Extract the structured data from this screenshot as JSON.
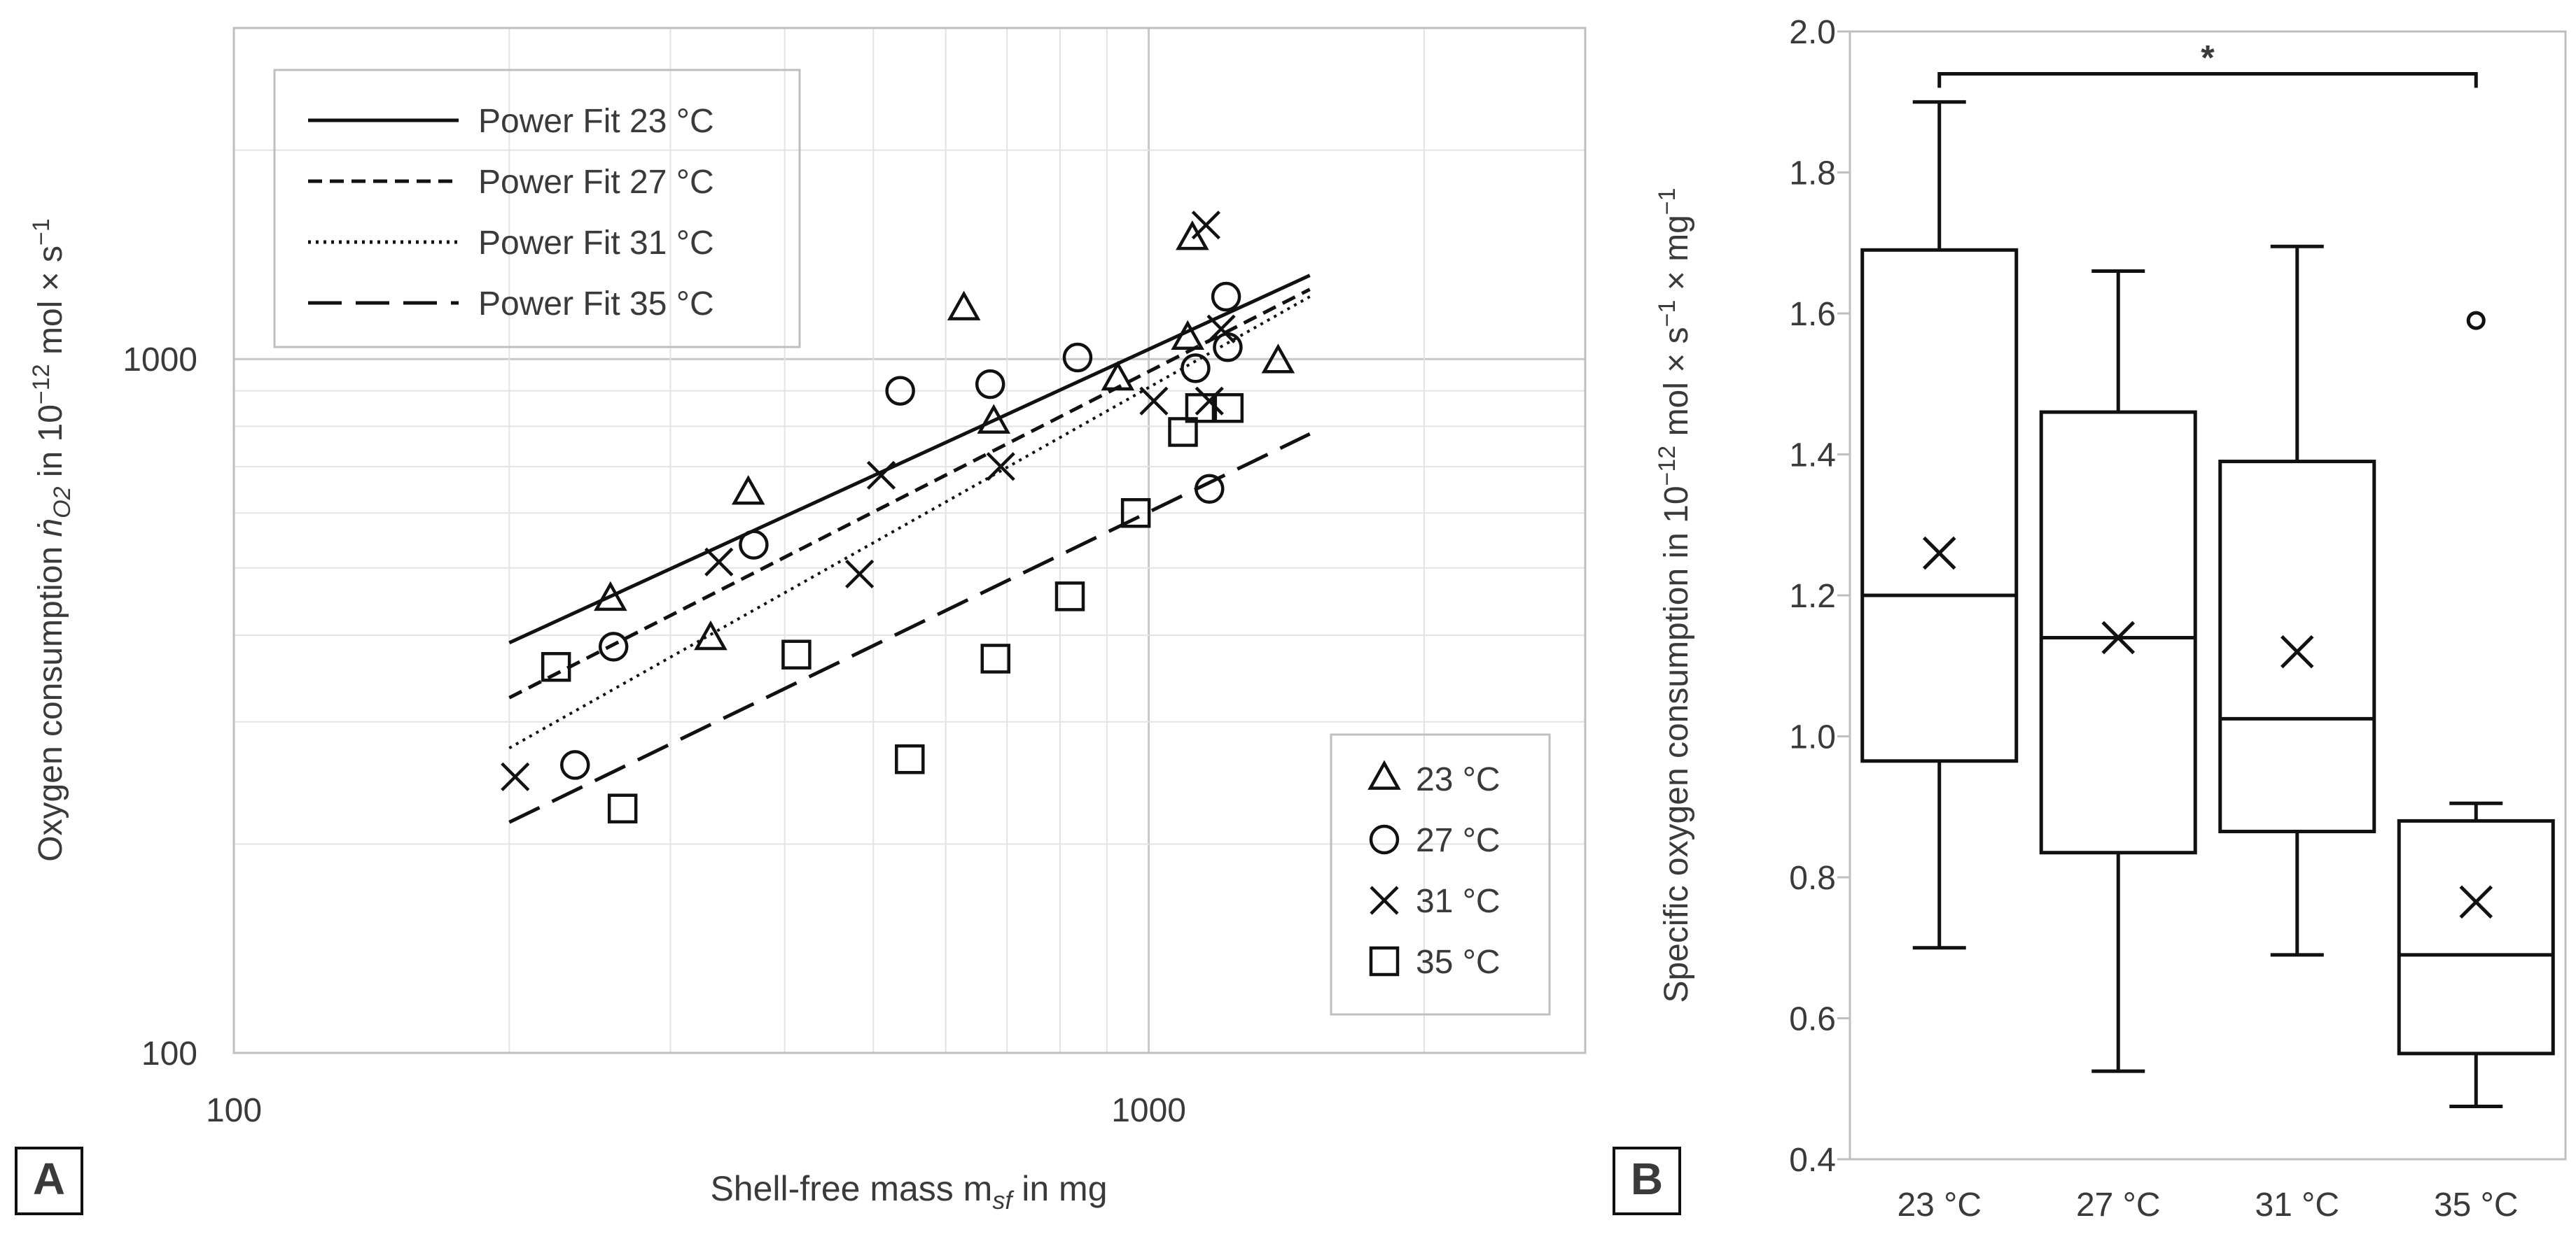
{
  "panel_labels": {
    "a": "A",
    "b": "B"
  },
  "chart_data": [
    {
      "panel": "A",
      "type": "scatter",
      "scale": "log-log",
      "xlabel_parts": [
        "Shell-free mass m",
        "sf",
        " in mg"
      ],
      "ylabel_parts": [
        "Oxygen consumption ",
        "ṅ",
        "O2",
        " in 10",
        "−12",
        "  mol × s",
        "−1"
      ],
      "xlim": [
        100,
        3000
      ],
      "ylim": [
        100,
        3000
      ],
      "x_tick_labels": [
        {
          "value": 100,
          "label": "100"
        },
        {
          "value": 1000,
          "label": "1000"
        }
      ],
      "y_tick_labels": [
        {
          "value": 100,
          "label": "100"
        },
        {
          "value": 1000,
          "label": "1000"
        }
      ],
      "grid": true,
      "fit_legend": [
        {
          "label": "Power Fit 23 °C",
          "dash": "solid"
        },
        {
          "label": "Power Fit 27 °C",
          "dash": "short"
        },
        {
          "label": "Power Fit 31 °C",
          "dash": "dotted"
        },
        {
          "label": "Power Fit 35 °C",
          "dash": "long"
        }
      ],
      "fit_legend_placement": "top-left",
      "marker_legend_placement": "bottom-right",
      "fits": [
        {
          "temp": "23 °C",
          "dash": "solid",
          "x_range": [
            200,
            1500
          ],
          "y_at_ends": [
            390,
            1320
          ]
        },
        {
          "temp": "27 °C",
          "dash": "short",
          "x_range": [
            200,
            1500
          ],
          "y_at_ends": [
            325,
            1260
          ]
        },
        {
          "temp": "31 °C",
          "dash": "dotted",
          "x_range": [
            200,
            1500
          ],
          "y_at_ends": [
            275,
            1230
          ]
        },
        {
          "temp": "35 °C",
          "dash": "long",
          "x_range": [
            200,
            1500
          ],
          "y_at_ends": [
            215,
            780
          ]
        }
      ],
      "series": [
        {
          "name": "23 °C",
          "marker": "triangle",
          "points": [
            [
              258,
              450
            ],
            [
              332,
              395
            ],
            [
              365,
              640
            ],
            [
              628,
              1180
            ],
            [
              677,
              810
            ],
            [
              925,
              935
            ],
            [
              1103,
              1070
            ],
            [
              1116,
              1490
            ],
            [
              1385,
              990
            ]
          ]
        },
        {
          "name": "27 °C",
          "marker": "circle",
          "points": [
            [
              236,
              260
            ],
            [
              260,
              385
            ],
            [
              370,
              540
            ],
            [
              535,
              900
            ],
            [
              671,
              920
            ],
            [
              836,
              1005
            ],
            [
              1125,
              970
            ],
            [
              1165,
              650
            ],
            [
              1215,
              1230
            ],
            [
              1220,
              1040
            ]
          ]
        },
        {
          "name": "31 °C",
          "marker": "x",
          "points": [
            [
              203,
              250
            ],
            [
              339,
              510
            ],
            [
              483,
              490
            ],
            [
              510,
              680
            ],
            [
              689,
              700
            ],
            [
              1013,
              870
            ],
            [
              1155,
              1560
            ],
            [
              1165,
              870
            ],
            [
              1200,
              1105
            ]
          ]
        },
        {
          "name": "35 °C",
          "marker": "square",
          "points": [
            [
              225,
              360
            ],
            [
              266,
              225
            ],
            [
              412,
              375
            ],
            [
              548,
              265
            ],
            [
              680,
              370
            ],
            [
              820,
              455
            ],
            [
              968,
              600
            ],
            [
              1090,
              785
            ],
            [
              1138,
              850
            ],
            [
              1223,
              850
            ]
          ]
        }
      ]
    },
    {
      "panel": "B",
      "type": "box",
      "ylabel_parts": [
        "Specific oxygen consumption in 10",
        "−12",
        "  mol × s",
        "−1",
        " × mg",
        "−1"
      ],
      "ylim": [
        0.4,
        2.0
      ],
      "y_ticks": [
        0.4,
        0.6,
        0.8,
        1.0,
        1.2,
        1.4,
        1.6,
        1.8,
        2.0
      ],
      "y_tick_labels": [
        "0.4",
        "0.6",
        "0.8",
        "1.0",
        "1.2",
        "1.4",
        "1.6",
        "1.8",
        "2.0"
      ],
      "categories": [
        "23 °C",
        "27 °C",
        "31 °C",
        "35 °C"
      ],
      "boxes": [
        {
          "category": "23 °C",
          "whisker_low": 0.7,
          "q1": 0.965,
          "median": 1.2,
          "q3": 1.69,
          "whisker_high": 1.9,
          "mean": 1.26,
          "outliers": []
        },
        {
          "category": "27 °C",
          "whisker_low": 0.525,
          "q1": 0.835,
          "median": 1.14,
          "q3": 1.46,
          "whisker_high": 1.66,
          "mean": 1.14,
          "outliers": []
        },
        {
          "category": "31 °C",
          "whisker_low": 0.69,
          "q1": 0.865,
          "median": 1.025,
          "q3": 1.39,
          "whisker_high": 1.695,
          "mean": 1.12,
          "outliers": []
        },
        {
          "category": "35 °C",
          "whisker_low": 0.475,
          "q1": 0.55,
          "median": 0.69,
          "q3": 0.88,
          "whisker_high": 0.905,
          "mean": 0.765,
          "outliers": [
            1.59
          ]
        }
      ],
      "significance": {
        "from": "23 °C",
        "to": "35 °C",
        "label": "*",
        "y": 1.94
      }
    }
  ]
}
